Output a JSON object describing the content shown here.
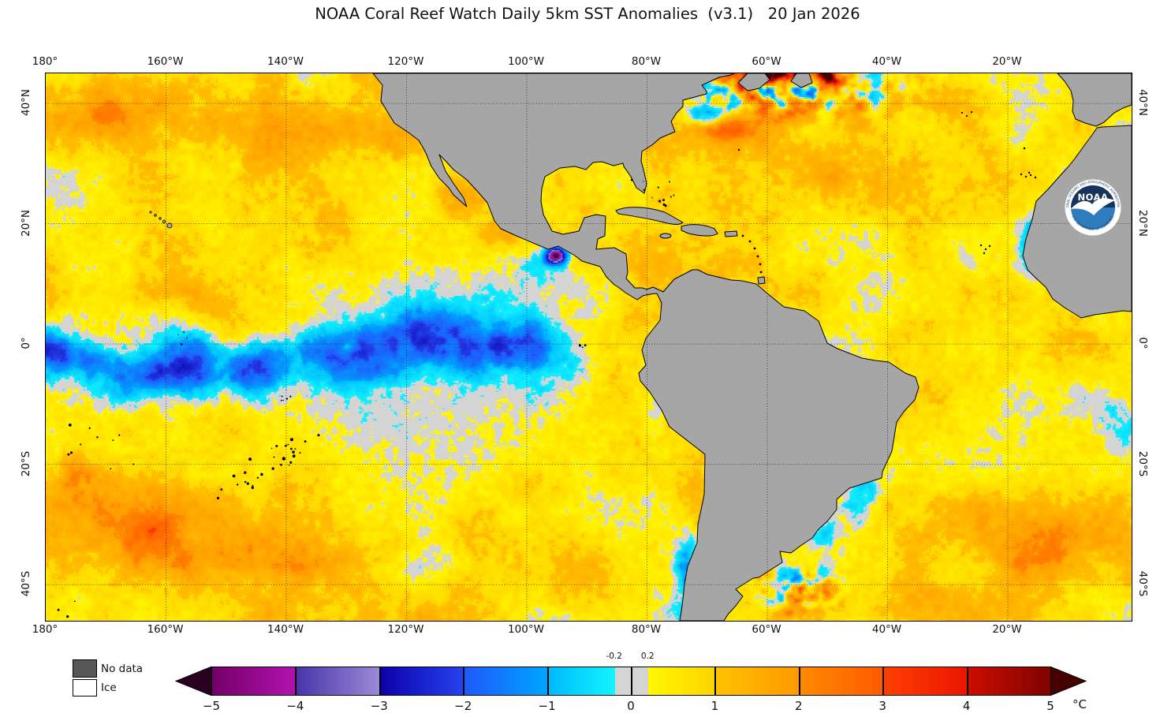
{
  "title": "NOAA Coral Reef Watch Daily 5km SST Anomalies  (v3.1)   20 Jan 2026",
  "axes": {
    "lon_ticks": [
      {
        "label": "180°",
        "f": 0.0
      },
      {
        "label": "160°W",
        "f": 0.11075
      },
      {
        "label": "140°W",
        "f": 0.22149
      },
      {
        "label": "120°W",
        "f": 0.33224
      },
      {
        "label": "100°W",
        "f": 0.44299
      },
      {
        "label": "80°W",
        "f": 0.55374
      },
      {
        "label": "60°W",
        "f": 0.66449
      },
      {
        "label": "40°W",
        "f": 0.77524
      },
      {
        "label": "20°W",
        "f": 0.88598
      }
    ],
    "lat_ticks": [
      {
        "label": "40°N",
        "f": 0.05494
      },
      {
        "label": "20°N",
        "f": 0.27468
      },
      {
        "label": "0°",
        "f": 0.49442
      },
      {
        "label": "20°S",
        "f": 0.71416
      },
      {
        "label": "40°S",
        "f": 0.9339
      }
    ]
  },
  "legend": {
    "no_data_label": "No data",
    "ice_label": "Ice",
    "no_data_color": "#575757",
    "ice_color": "#ffffff"
  },
  "colorbar": {
    "unit": "°C",
    "tick_labels": [
      "−5",
      "−4",
      "−3",
      "−2",
      "−1",
      "0",
      "1",
      "2",
      "3",
      "4",
      "5"
    ],
    "tick_values": [
      -5,
      -4,
      -3,
      -2,
      -1,
      0,
      1,
      2,
      3,
      4,
      5
    ],
    "threshold_labels": [
      {
        "text": "-0.2",
        "v": -0.2
      },
      {
        "text": "0.2",
        "v": 0.2
      }
    ],
    "segments": [
      {
        "from": -5,
        "to": -4,
        "c1": "#730068",
        "c2": "#b312b0"
      },
      {
        "from": -4,
        "to": -3,
        "c1": "#4834a8",
        "c2": "#9a8cd8"
      },
      {
        "from": -3,
        "to": -2,
        "c1": "#0c00aa",
        "c2": "#2543ef"
      },
      {
        "from": -2,
        "to": -1,
        "c1": "#1e58fa",
        "c2": "#00a6ff"
      },
      {
        "from": -1,
        "to": -0.2,
        "c1": "#00bafc",
        "c2": "#12f3ff"
      },
      {
        "from": -0.2,
        "to": 0.2,
        "c1": "#d4d4d4",
        "c2": "#d4d4d4"
      },
      {
        "from": 0.2,
        "to": 1,
        "c1": "#fff800",
        "c2": "#ffd300"
      },
      {
        "from": 1,
        "to": 2,
        "c1": "#ffc300",
        "c2": "#ff9800"
      },
      {
        "from": 2,
        "to": 3,
        "c1": "#ff8a00",
        "c2": "#ff5a00"
      },
      {
        "from": 3,
        "to": 4,
        "c1": "#ff4000",
        "c2": "#ea1500"
      },
      {
        "from": 4,
        "to": 5,
        "c1": "#cd0d00",
        "c2": "#7e0300"
      }
    ],
    "left_arrow_color": "#2a0020",
    "right_arrow_color": "#450200"
  },
  "map_colors": {
    "land": "#a6a6a6",
    "coastline": "#000000",
    "near_zero_gray": "#d4d4d4",
    "gridline": "#111111"
  },
  "logo": {
    "name": "NOAA",
    "ring_top": "NATIONAL OCEANIC AND ATMOSPHERIC ADMINISTRATION",
    "ring_bottom": "U.S. DEPARTMENT OF COMMERCE",
    "navy": "#16335e",
    "sea_blue": "#2e7cbd"
  }
}
